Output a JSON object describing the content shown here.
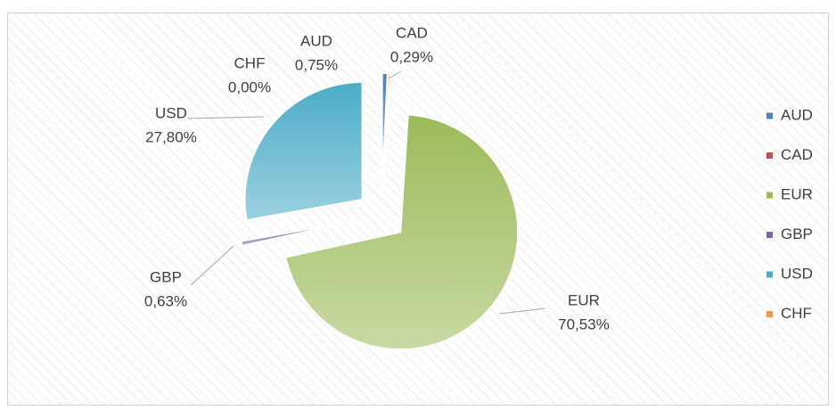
{
  "chart_data": {
    "type": "pie",
    "categories": [
      "AUD",
      "CAD",
      "EUR",
      "GBP",
      "USD",
      "CHF"
    ],
    "values": [
      0.75,
      0.29,
      70.53,
      0.63,
      27.8,
      0.0
    ],
    "value_labels": [
      "0,75%",
      "0,29%",
      "70,53%",
      "0,63%",
      "27,80%",
      "0,00%"
    ],
    "colors": [
      "#4f81bd",
      "#c0504d",
      "#9bbb59",
      "#8064a2",
      "#4bacc6",
      "#f79646"
    ],
    "legend": "right"
  }
}
